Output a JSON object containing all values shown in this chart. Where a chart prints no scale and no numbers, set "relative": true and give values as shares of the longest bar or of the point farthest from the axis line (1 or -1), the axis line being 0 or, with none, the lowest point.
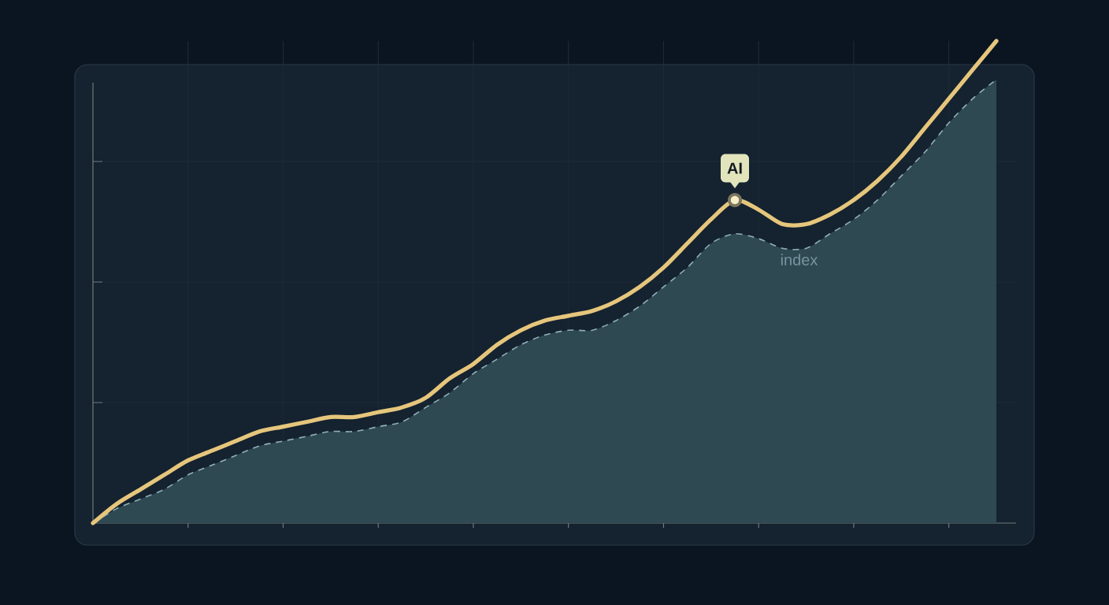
{
  "chart_data": {
    "type": "line",
    "relative": true,
    "grid": true,
    "tick_labels": false,
    "categories": [
      null,
      null,
      null,
      null,
      null,
      null,
      null,
      null,
      null,
      null,
      null,
      null,
      null,
      null,
      null,
      null,
      null,
      null,
      null,
      null,
      null,
      null,
      null,
      null,
      null,
      null,
      null,
      null,
      null,
      null,
      null,
      null,
      null,
      null,
      null,
      null,
      null,
      null,
      null
    ],
    "series": [
      {
        "name": "AI",
        "color": "#e5c67c",
        "values": [
          0,
          0.04,
          0.07,
          0.1,
          0.13,
          0.15,
          0.17,
          0.19,
          0.2,
          0.21,
          0.22,
          0.22,
          0.23,
          0.24,
          0.26,
          0.3,
          0.33,
          0.37,
          0.4,
          0.42,
          0.43,
          0.44,
          0.46,
          0.49,
          0.53,
          0.58,
          0.63,
          0.67,
          0.65,
          0.62,
          0.62,
          0.64,
          0.67,
          0.71,
          0.76,
          0.82,
          0.88,
          0.94,
          1
        ]
      },
      {
        "name": "index",
        "type": "area",
        "color": "#8fb0b8",
        "line_style": "dashed",
        "values": [
          0,
          0.03,
          0.05,
          0.07,
          0.1,
          0.12,
          0.14,
          0.16,
          0.17,
          0.18,
          0.19,
          0.19,
          0.2,
          0.21,
          0.24,
          0.27,
          0.31,
          0.34,
          0.37,
          0.39,
          0.4,
          0.4,
          0.42,
          0.45,
          0.49,
          0.53,
          0.58,
          0.6,
          0.59,
          0.57,
          0.57,
          0.6,
          0.63,
          0.67,
          0.72,
          0.77,
          0.83,
          0.88,
          0.92
        ]
      }
    ]
  }
}
